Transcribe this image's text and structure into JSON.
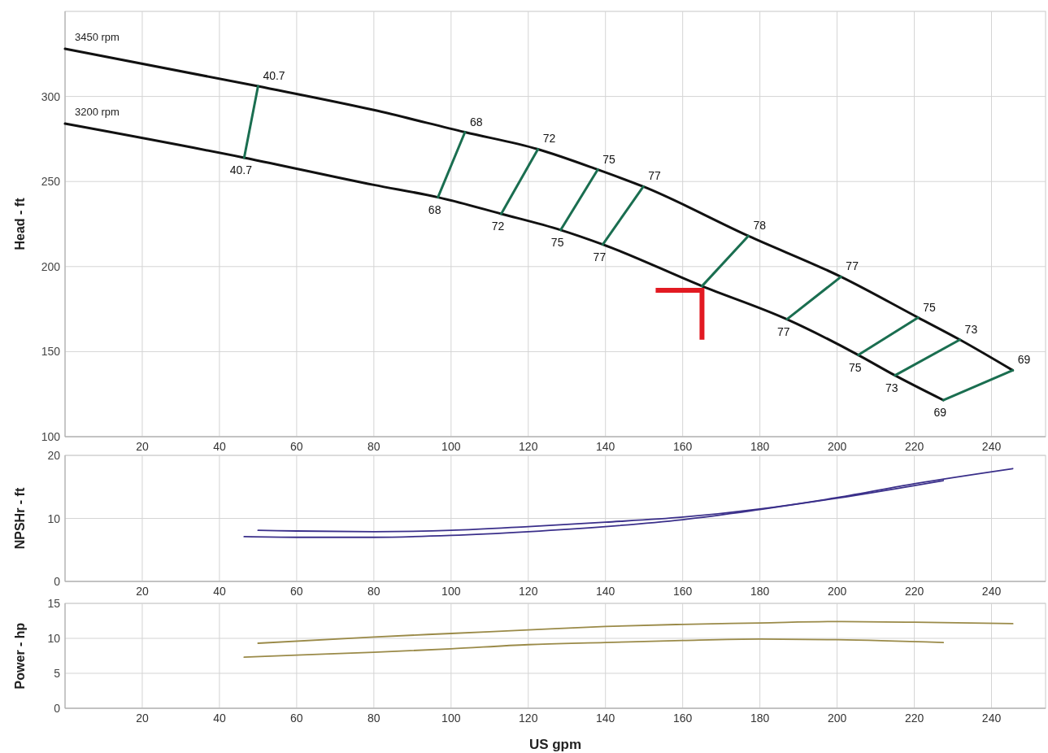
{
  "chart_data": [
    {
      "type": "line",
      "ylabel": "Head - ft",
      "xlim": [
        0,
        254
      ],
      "xticks": [
        20,
        40,
        60,
        80,
        100,
        120,
        140,
        160,
        180,
        200,
        220,
        240
      ],
      "ylim": [
        100,
        350
      ],
      "yticks": [
        100,
        150,
        200,
        250,
        300
      ],
      "grid": true,
      "series": [
        {
          "name": "3450 rpm",
          "color": "#111111",
          "x": [
            0,
            50,
            80,
            103.6,
            122.5,
            138,
            149.8,
            177,
            201,
            221,
            231.8,
            245.5
          ],
          "values": [
            328,
            306,
            292,
            279,
            269,
            257,
            247,
            218,
            194,
            170,
            157,
            139
          ]
        },
        {
          "name": "3200 rpm",
          "color": "#111111",
          "x": [
            0,
            46.4,
            80,
            96.6,
            113,
            128.4,
            139.3,
            165,
            187,
            205.5,
            215,
            227.5
          ],
          "values": [
            284,
            264,
            248,
            240.7,
            231,
            221.5,
            213,
            188.5,
            169,
            148,
            136,
            121.5
          ]
        },
        {
          "color": "#1a6e50",
          "x": [
            46.4,
            50
          ],
          "values": [
            264,
            306
          ]
        },
        {
          "color": "#1a6e50",
          "x": [
            96.6,
            103.6
          ],
          "values": [
            240.7,
            279
          ]
        },
        {
          "color": "#1a6e50",
          "x": [
            113,
            122.5
          ],
          "values": [
            231,
            269
          ]
        },
        {
          "color": "#1a6e50",
          "x": [
            128.4,
            138
          ],
          "values": [
            221.5,
            257
          ]
        },
        {
          "color": "#1a6e50",
          "x": [
            139.3,
            149.8
          ],
          "values": [
            213,
            247
          ]
        },
        {
          "color": "#1a6e50",
          "x": [
            165,
            177
          ],
          "values": [
            188.5,
            218
          ]
        },
        {
          "color": "#1a6e50",
          "x": [
            187,
            201
          ],
          "values": [
            169,
            194
          ]
        },
        {
          "color": "#1a6e50",
          "x": [
            205.5,
            221
          ],
          "values": [
            148,
            170
          ]
        },
        {
          "color": "#1a6e50",
          "x": [
            215,
            231.8
          ],
          "values": [
            136,
            157
          ]
        },
        {
          "color": "#1a6e50",
          "x": [
            227.5,
            245.5
          ],
          "values": [
            121.5,
            139
          ]
        }
      ],
      "annotations": [
        {
          "text": "40.7",
          "x": 50,
          "y": 306
        },
        {
          "text": "40.7",
          "x": 46.4,
          "y": 264
        },
        {
          "text": "68",
          "x": 103.6,
          "y": 279
        },
        {
          "text": "68",
          "x": 96.6,
          "y": 240.7
        },
        {
          "text": "72",
          "x": 122.5,
          "y": 269
        },
        {
          "text": "72",
          "x": 113,
          "y": 231
        },
        {
          "text": "75",
          "x": 138,
          "y": 257
        },
        {
          "text": "75",
          "x": 128.4,
          "y": 221.5
        },
        {
          "text": "77",
          "x": 149.8,
          "y": 247
        },
        {
          "text": "77",
          "x": 139.3,
          "y": 213
        },
        {
          "text": "78",
          "x": 177,
          "y": 218
        },
        {
          "text": "77",
          "x": 201,
          "y": 194
        },
        {
          "text": "77",
          "x": 187,
          "y": 169
        },
        {
          "text": "75",
          "x": 221,
          "y": 170
        },
        {
          "text": "75",
          "x": 205.5,
          "y": 148
        },
        {
          "text": "73",
          "x": 231.8,
          "y": 157
        },
        {
          "text": "73",
          "x": 215,
          "y": 136
        },
        {
          "text": "69",
          "x": 245.5,
          "y": 139
        },
        {
          "text": "69",
          "x": 227.5,
          "y": 121.5
        }
      ]
    },
    {
      "type": "line",
      "ylabel": "NPSHr - ft",
      "xlim": [
        0,
        254
      ],
      "xticks": [
        20,
        40,
        60,
        80,
        100,
        120,
        140,
        160,
        180,
        200,
        220,
        240
      ],
      "ylim": [
        0,
        20
      ],
      "yticks": [
        0,
        10,
        20
      ],
      "grid": true,
      "series": [
        {
          "color": "#3a2f8a",
          "x": [
            50,
            60,
            80,
            100,
            120,
            140,
            160,
            180,
            200,
            220,
            245.5
          ],
          "values": [
            8.1,
            8.0,
            7.9,
            8.1,
            8.7,
            9.4,
            10.2,
            11.5,
            13.3,
            15.5,
            17.9
          ]
        },
        {
          "color": "#3a2f8a",
          "x": [
            46.4,
            60,
            80,
            100,
            120,
            140,
            160,
            180,
            200,
            227.5
          ],
          "values": [
            7.1,
            7.0,
            7.0,
            7.3,
            7.9,
            8.7,
            9.8,
            11.4,
            13.2,
            16.0
          ]
        }
      ]
    },
    {
      "type": "line",
      "ylabel": "Power - hp",
      "xlabel": "US gpm",
      "xlim": [
        0,
        254
      ],
      "xticks": [
        20,
        40,
        60,
        80,
        100,
        120,
        140,
        160,
        180,
        200,
        220,
        240
      ],
      "ylim": [
        0,
        15
      ],
      "yticks": [
        0,
        5,
        10,
        15
      ],
      "grid": true,
      "series": [
        {
          "color": "#9a8a48",
          "x": [
            50,
            80,
            100,
            120,
            140,
            160,
            180,
            200,
            220,
            245.5
          ],
          "values": [
            9.3,
            10.2,
            10.7,
            11.2,
            11.7,
            12.0,
            12.2,
            12.4,
            12.3,
            12.1
          ]
        },
        {
          "color": "#9a8a48",
          "x": [
            46.4,
            60,
            80,
            100,
            120,
            140,
            160,
            180,
            200,
            227.5
          ],
          "values": [
            7.3,
            7.6,
            8.0,
            8.5,
            9.1,
            9.4,
            9.7,
            9.9,
            9.8,
            9.4
          ]
        }
      ]
    }
  ]
}
